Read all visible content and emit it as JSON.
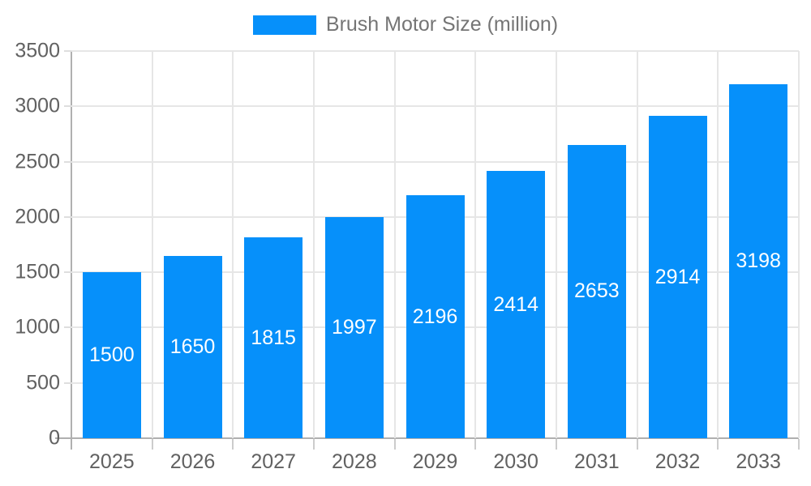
{
  "legend": {
    "label": "Brush Motor Size (million)",
    "swatch_color": "#0690fa"
  },
  "chart_data": {
    "type": "bar",
    "title": "",
    "xlabel": "",
    "ylabel": "",
    "categories": [
      "2025",
      "2026",
      "2027",
      "2028",
      "2029",
      "2030",
      "2031",
      "2032",
      "2033"
    ],
    "series": [
      {
        "name": "Brush Motor Size (million)",
        "values": [
          1500,
          1650,
          1815,
          1997,
          2196,
          2414,
          2653,
          2914,
          3198
        ]
      }
    ],
    "bar_labels": [
      "1500",
      "1650",
      "1815",
      "1997",
      "2196",
      "2414",
      "2653",
      "2914",
      "3198"
    ],
    "ylim": [
      0,
      3500
    ],
    "yticks": [
      0,
      500,
      1000,
      1500,
      2000,
      2500,
      3000,
      3500
    ],
    "grid": true,
    "legend_position": "top-center"
  },
  "colors": {
    "bar": "#0690fa",
    "bar_label_text": "#ffffff",
    "gridline": "#e6e6e6",
    "axis_line": "#b0b0b0",
    "axis_text": "#616161",
    "legend_text": "#757575",
    "background": "#ffffff"
  }
}
